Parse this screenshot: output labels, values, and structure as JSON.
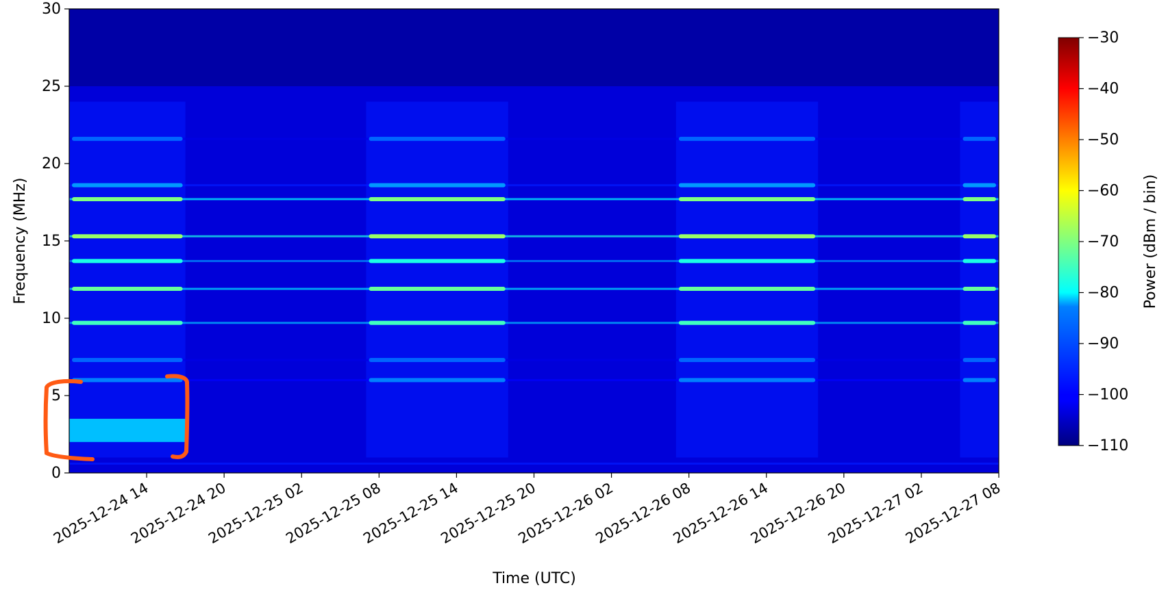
{
  "chart_data": {
    "type": "heatmap",
    "title": "",
    "xlabel": "Time (UTC)",
    "ylabel": "Frequency (MHz)",
    "ylim": [
      0,
      30
    ],
    "xlim": [
      "2025-12-24 08:00",
      "2025-12-27 08:00"
    ],
    "x_ticks": [
      "2025-12-24 14",
      "2025-12-24 20",
      "2025-12-25 02",
      "2025-12-25 08",
      "2025-12-25 14",
      "2025-12-25 20",
      "2025-12-26 02",
      "2025-12-26 08",
      "2025-12-26 14",
      "2025-12-26 20",
      "2025-12-27 02",
      "2025-12-27 08"
    ],
    "y_ticks": [
      0,
      5,
      10,
      15,
      20,
      25,
      30
    ],
    "colorbar": {
      "label": "Power (dBm / bin)",
      "range": [
        -110,
        -30
      ],
      "ticks": [
        -30,
        -40,
        -50,
        -60,
        -70,
        -80,
        -90,
        -100,
        -110
      ],
      "colormap": "jet"
    },
    "grid": false,
    "background_power_dbm": -103,
    "daytime_windows": [
      {
        "start": "2025-12-24 08:00",
        "end": "2025-12-24 17:00"
      },
      {
        "start": "2025-12-25 07:00",
        "end": "2025-12-25 18:00"
      },
      {
        "start": "2025-12-26 07:00",
        "end": "2025-12-26 18:00"
      },
      {
        "start": "2025-12-27 05:00",
        "end": "2025-12-27 08:00"
      }
    ],
    "emission_bands_mhz": [
      {
        "freq": 0.6,
        "power_dbm": -88,
        "note": "continuous line"
      },
      {
        "freq": 6.0,
        "power_dbm": -90
      },
      {
        "freq": 7.3,
        "power_dbm": -92
      },
      {
        "freq": 9.7,
        "power_dbm": -75
      },
      {
        "freq": 11.9,
        "power_dbm": -72
      },
      {
        "freq": 13.7,
        "power_dbm": -78
      },
      {
        "freq": 15.3,
        "power_dbm": -68
      },
      {
        "freq": 17.7,
        "power_dbm": -70
      },
      {
        "freq": 18.6,
        "power_dbm": -88
      },
      {
        "freq": 21.6,
        "power_dbm": -92
      }
    ],
    "highlighted_region": {
      "time_start": "2025-12-24 08:00",
      "time_end": "2025-12-24 17:00",
      "freq_range_mhz": [
        1.0,
        6.0
      ],
      "note": "orange bracket; elevated power around 2-3.5 MHz",
      "power_dbm": -85,
      "color": "#ff5a14"
    }
  }
}
